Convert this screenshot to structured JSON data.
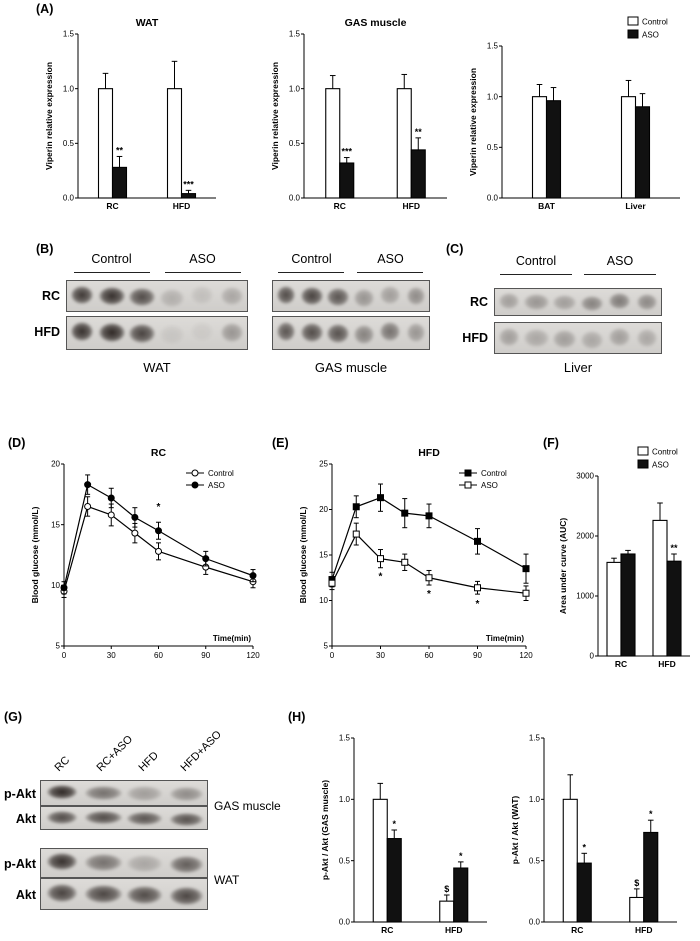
{
  "panels": {
    "a": "(A)",
    "b": "(B)",
    "c": "(C)",
    "d": "(D)",
    "e": "(E)",
    "f": "(F)",
    "g": "(G)",
    "h": "(H)"
  },
  "colors": {
    "control_fill": "#ffffff",
    "aso_fill": "#111111",
    "axis": "#000000"
  },
  "chart_data": [
    {
      "id": "viperin-wat",
      "type": "bar",
      "title": "WAT",
      "ylabel": "Viperin relative expression",
      "ylim": [
        0,
        1.5
      ],
      "yticks": [
        0,
        0.5,
        1,
        1.5
      ],
      "ytick_labels": [
        "0.0",
        "0.5",
        "1.0",
        "1.5"
      ],
      "categories": [
        "RC",
        "HFD"
      ],
      "series": [
        {
          "name": "Control",
          "fill": "#ffffff",
          "values": [
            1.0,
            1.0
          ],
          "errors": [
            0.14,
            0.25
          ],
          "sig": [
            "",
            ""
          ]
        },
        {
          "name": "ASO",
          "fill": "#111111",
          "values": [
            0.28,
            0.04
          ],
          "errors": [
            0.1,
            0.03
          ],
          "sig": [
            "**",
            "***"
          ]
        }
      ],
      "legend": false
    },
    {
      "id": "viperin-gas",
      "type": "bar",
      "title": "GAS muscle",
      "ylabel": "Viperin relative expression",
      "ylim": [
        0,
        1.5
      ],
      "yticks": [
        0,
        0.5,
        1,
        1.5
      ],
      "ytick_labels": [
        "0.0",
        "0.5",
        "1.0",
        "1.5"
      ],
      "categories": [
        "RC",
        "HFD"
      ],
      "series": [
        {
          "name": "Control",
          "fill": "#ffffff",
          "values": [
            1.0,
            1.0
          ],
          "errors": [
            0.12,
            0.13
          ],
          "sig": [
            "",
            ""
          ]
        },
        {
          "name": "ASO",
          "fill": "#111111",
          "values": [
            0.32,
            0.44
          ],
          "errors": [
            0.05,
            0.11
          ],
          "sig": [
            "***",
            "**"
          ]
        }
      ],
      "legend": false
    },
    {
      "id": "viperin-bat-liver",
      "type": "bar",
      "title": "",
      "ylabel": "Viperin relative expression",
      "ylim": [
        0,
        1.5
      ],
      "yticks": [
        0,
        0.5,
        1,
        1.5
      ],
      "ytick_labels": [
        "0.0",
        "0.5",
        "1.0",
        "1.5"
      ],
      "categories": [
        "BAT",
        "Liver"
      ],
      "series": [
        {
          "name": "Control",
          "fill": "#ffffff",
          "values": [
            1.0,
            1.0
          ],
          "errors": [
            0.12,
            0.16
          ],
          "sig": [
            "",
            ""
          ]
        },
        {
          "name": "ASO",
          "fill": "#111111",
          "values": [
            0.96,
            0.9
          ],
          "errors": [
            0.13,
            0.13
          ],
          "sig": [
            "",
            ""
          ]
        }
      ],
      "legend": true
    },
    {
      "id": "gtt-rc",
      "type": "line",
      "title": "RC",
      "ylabel": "Blood glucose (mmol/L)",
      "xlabel": "Time(min)",
      "ylim": [
        5,
        20
      ],
      "yticks": [
        5,
        10,
        15,
        20
      ],
      "ytick_labels": [
        "5",
        "10",
        "15",
        "20"
      ],
      "xlim": [
        0,
        120
      ],
      "xticks": [
        0,
        30,
        60,
        90,
        120
      ],
      "x": [
        0,
        15,
        30,
        45,
        60,
        90,
        120
      ],
      "series": [
        {
          "name": "Control",
          "marker": "circle-open",
          "values": [
            9.5,
            16.5,
            15.8,
            14.3,
            12.8,
            11.5,
            10.3
          ],
          "errors": [
            0.5,
            0.8,
            0.9,
            0.8,
            0.7,
            0.6,
            0.5
          ]
        },
        {
          "name": "ASO",
          "marker": "circle-filled",
          "values": [
            9.8,
            18.3,
            17.2,
            15.6,
            14.5,
            12.2,
            10.8
          ],
          "errors": [
            0.5,
            0.8,
            0.8,
            0.8,
            0.7,
            0.6,
            0.5
          ]
        }
      ],
      "annotations": [
        {
          "x": 60,
          "y": 16.2,
          "text": "*"
        }
      ],
      "legend": true
    },
    {
      "id": "gtt-hfd",
      "type": "line",
      "title": "HFD",
      "ylabel": "Blood glucose (mmol/L)",
      "xlabel": "Time(min)",
      "ylim": [
        5,
        25
      ],
      "yticks": [
        5,
        10,
        15,
        20,
        25
      ],
      "ytick_labels": [
        "5",
        "10",
        "15",
        "20",
        "25"
      ],
      "xlim": [
        0,
        120
      ],
      "xticks": [
        0,
        30,
        60,
        90,
        120
      ],
      "x": [
        0,
        15,
        30,
        45,
        60,
        90,
        120
      ],
      "series": [
        {
          "name": "Control",
          "marker": "square-filled",
          "values": [
            12.3,
            20.3,
            21.3,
            19.6,
            19.3,
            16.5,
            13.5
          ],
          "errors": [
            0.8,
            1.2,
            1.5,
            1.6,
            1.3,
            1.4,
            1.6
          ]
        },
        {
          "name": "ASO",
          "marker": "square-open",
          "values": [
            11.9,
            17.3,
            14.6,
            14.2,
            12.5,
            11.4,
            10.8
          ],
          "errors": [
            0.7,
            1.2,
            1.0,
            0.9,
            0.8,
            0.7,
            0.8
          ]
        }
      ],
      "annotations": [
        {
          "x": 30,
          "y": 12.3,
          "text": "*"
        },
        {
          "x": 60,
          "y": 10.4,
          "text": "*"
        },
        {
          "x": 90,
          "y": 9.3,
          "text": "*"
        }
      ],
      "legend": true
    },
    {
      "id": "auc",
      "type": "bar",
      "title": "",
      "ylabel": "Area under curve (AUC)",
      "margin_left": 42,
      "ylim": [
        0,
        3000
      ],
      "yticks": [
        0,
        1000,
        2000,
        3000
      ],
      "ytick_labels": [
        "0",
        "1000",
        "2000",
        "3000"
      ],
      "categories": [
        "RC",
        "HFD"
      ],
      "series": [
        {
          "name": "Control",
          "fill": "#ffffff",
          "values": [
            1560,
            2260
          ],
          "errors": [
            70,
            290
          ],
          "sig": [
            "",
            ""
          ]
        },
        {
          "name": "ASO",
          "fill": "#111111",
          "values": [
            1700,
            1580
          ],
          "errors": [
            60,
            120
          ],
          "sig": [
            "",
            "**"
          ]
        }
      ],
      "legend": true
    },
    {
      "id": "pakt-gas",
      "type": "bar",
      "title": "",
      "ylabel": "p-Akt / Akt (GAS muscle)",
      "ylim": [
        0,
        1.5
      ],
      "yticks": [
        0,
        0.5,
        1,
        1.5
      ],
      "ytick_labels": [
        "0.0",
        "0.5",
        "1.0",
        "1.5"
      ],
      "categories": [
        "RC",
        "HFD"
      ],
      "series": [
        {
          "name": "Control",
          "fill": "#ffffff",
          "values": [
            1.0,
            0.17
          ],
          "errors": [
            0.13,
            0.05
          ],
          "sig": [
            "",
            "$"
          ]
        },
        {
          "name": "ASO",
          "fill": "#111111",
          "values": [
            0.68,
            0.44
          ],
          "errors": [
            0.07,
            0.05
          ],
          "sig": [
            "*",
            "*"
          ]
        }
      ],
      "legend": false
    },
    {
      "id": "pakt-wat",
      "type": "bar",
      "title": "",
      "ylabel": "p-Akt / Akt (WAT)",
      "ylim": [
        0,
        1.5
      ],
      "yticks": [
        0,
        0.5,
        1,
        1.5
      ],
      "ytick_labels": [
        "0.0",
        "0.5",
        "1.0",
        "1.5"
      ],
      "categories": [
        "RC",
        "HFD"
      ],
      "series": [
        {
          "name": "Control",
          "fill": "#ffffff",
          "values": [
            1.0,
            0.2
          ],
          "errors": [
            0.2,
            0.07
          ],
          "sig": [
            "",
            "$"
          ]
        },
        {
          "name": "ASO",
          "fill": "#111111",
          "values": [
            0.48,
            0.73
          ],
          "errors": [
            0.08,
            0.1
          ],
          "sig": [
            "*",
            "*"
          ]
        }
      ],
      "legend": false
    }
  ],
  "blots": {
    "b_wat": {
      "caption": "WAT",
      "group_labels": [
        "Control",
        "ASO"
      ],
      "rows": [
        {
          "label": "RC",
          "lanes": [
            0.85,
            0.9,
            0.75,
            0.2,
            0.12,
            0.25
          ]
        },
        {
          "label": "HFD",
          "lanes": [
            0.9,
            0.95,
            0.8,
            0.08,
            0.06,
            0.35
          ]
        }
      ]
    },
    "b_gas": {
      "caption": "GAS muscle",
      "group_labels": [
        "Control",
        "ASO"
      ],
      "rows": [
        {
          "label": "RC",
          "lanes": [
            0.75,
            0.8,
            0.7,
            0.35,
            0.3,
            0.4
          ]
        },
        {
          "label": "HFD",
          "lanes": [
            0.7,
            0.75,
            0.72,
            0.45,
            0.55,
            0.35
          ]
        }
      ]
    },
    "c_liver": {
      "caption": "Liver",
      "group_labels": [
        "Control",
        "ASO"
      ],
      "rows": [
        {
          "label": "RC",
          "lanes": [
            0.3,
            0.35,
            0.3,
            0.45,
            0.5,
            0.42
          ]
        },
        {
          "label": "HFD",
          "lanes": [
            0.3,
            0.25,
            0.3,
            0.25,
            0.3,
            0.25
          ]
        }
      ]
    },
    "g": {
      "lane_labels": [
        "RC",
        "RC+ASO",
        "HFD",
        "HFD+ASO"
      ],
      "groups": [
        {
          "tissue": "GAS muscle",
          "rows": [
            {
              "label": "p-Akt",
              "lanes": [
                0.95,
                0.55,
                0.3,
                0.4
              ]
            },
            {
              "label": "Akt",
              "lanes": [
                0.75,
                0.75,
                0.7,
                0.72
              ]
            }
          ]
        },
        {
          "tissue": "WAT",
          "rows": [
            {
              "label": "p-Akt",
              "lanes": [
                0.9,
                0.55,
                0.25,
                0.65
              ]
            },
            {
              "label": "Akt",
              "lanes": [
                0.8,
                0.78,
                0.75,
                0.78
              ]
            }
          ]
        }
      ]
    }
  }
}
